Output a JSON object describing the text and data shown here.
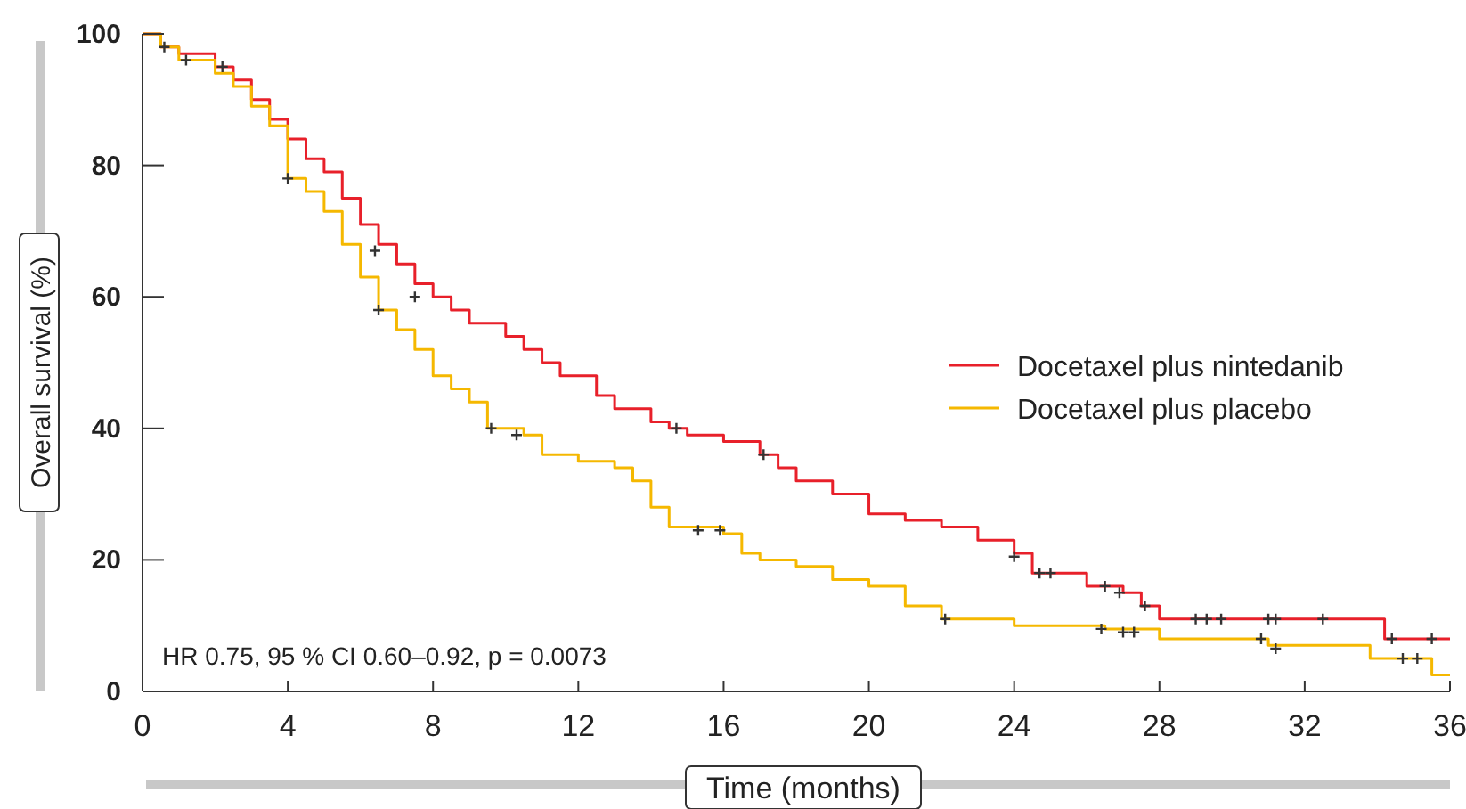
{
  "chart_data": {
    "type": "step",
    "xlabel": "Time (months)",
    "ylabel": "Overall survival (%)",
    "xlim": [
      0,
      36
    ],
    "ylim": [
      0,
      100
    ],
    "xticks": [
      0,
      4,
      8,
      12,
      16,
      20,
      24,
      28,
      32,
      36
    ],
    "yticks": [
      0,
      20,
      40,
      60,
      80,
      100
    ],
    "grid": false,
    "legend": "right",
    "annotations": [
      "HR 0.75, 95 % CI 0.60–0.92, p = 0.0073"
    ],
    "series": [
      {
        "name": "Docetaxel plus nintedanib",
        "color": "#e8202a",
        "x": [
          0,
          0.5,
          1,
          2,
          2.5,
          3,
          3.5,
          4,
          4.5,
          5,
          5.5,
          6,
          6.5,
          7,
          7.5,
          8,
          8.5,
          9,
          10,
          10.5,
          11,
          11.5,
          12.5,
          13,
          14,
          14.5,
          15,
          16,
          17,
          17.5,
          18,
          19,
          20,
          21,
          22,
          23,
          24,
          24.5,
          26,
          27,
          27.5,
          28,
          34.2,
          36
        ],
        "values": [
          100,
          98,
          97,
          95,
          93,
          90,
          87,
          84,
          81,
          79,
          75,
          71,
          68,
          65,
          62,
          60,
          58,
          56,
          54,
          52,
          50,
          48,
          45,
          43,
          41,
          40,
          39,
          38,
          36,
          34,
          32,
          30,
          27,
          26,
          25,
          23,
          21,
          18,
          16,
          15,
          13,
          11,
          8,
          8
        ]
      },
      {
        "name": "Docetaxel plus placebo",
        "color": "#f5b800",
        "x": [
          0,
          0.5,
          1,
          2,
          2.5,
          3,
          3.5,
          4,
          4.5,
          5,
          5.5,
          6,
          6.5,
          7,
          7.5,
          8,
          8.5,
          9,
          9.5,
          10.5,
          11,
          12,
          13,
          13.5,
          14,
          14.5,
          16,
          16.5,
          17,
          18,
          19,
          20,
          21,
          22,
          24,
          26.5,
          28,
          31,
          33.8,
          35.5,
          36
        ],
        "values": [
          100,
          98,
          96,
          94,
          92,
          89,
          86,
          78,
          76,
          73,
          68,
          63,
          58,
          55,
          52,
          48,
          46,
          44,
          40,
          39,
          36,
          35,
          34,
          32,
          28,
          25,
          24,
          21,
          20,
          19,
          17,
          16,
          13,
          11,
          10,
          9.5,
          8,
          7,
          5,
          2.5,
          2.5
        ]
      },
      {
        "type": "scatter",
        "marker": "cross",
        "color": "#333333",
        "x": [
          0.6,
          2.2,
          6.4,
          7.5,
          14.7,
          17.1,
          24,
          24.7,
          25,
          26.5,
          26.9,
          27.6,
          29,
          29.3,
          29.7,
          31,
          31.2,
          32.5,
          34.4,
          35.5
        ],
        "values": [
          98,
          95,
          67,
          60,
          40,
          36,
          20.5,
          18,
          18,
          16,
          15,
          13,
          11,
          11,
          11,
          11,
          11,
          11,
          8,
          8
        ]
      },
      {
        "type": "scatter",
        "marker": "cross",
        "color": "#333333",
        "x": [
          1.2,
          4,
          6.5,
          9.6,
          10.3,
          15.3,
          15.9,
          22.1,
          26.4,
          27,
          27.3,
          30.8,
          31.2,
          34.7,
          35.1
        ],
        "values": [
          96,
          78,
          58,
          40,
          39,
          24.5,
          24.5,
          11,
          9.5,
          9,
          9,
          8,
          6.5,
          5,
          5
        ]
      }
    ]
  }
}
